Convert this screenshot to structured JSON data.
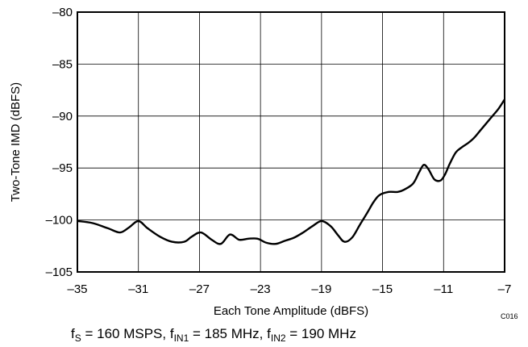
{
  "chart_data": {
    "type": "line",
    "xlabel": "Each Tone Amplitude (dBFS)",
    "ylabel": "Two-Tone IMD (dBFS)",
    "xlim": [
      -35,
      -7
    ],
    "ylim": [
      -105,
      -80
    ],
    "x_ticks": [
      -35,
      -31,
      -27,
      -23,
      -19,
      -15,
      -11,
      -7
    ],
    "y_ticks": [
      -80,
      -85,
      -90,
      -95,
      -100,
      -105
    ],
    "x_tick_labels": [
      "–35",
      "–31",
      "–27",
      "–23",
      "–19",
      "–15",
      "–11",
      "–7"
    ],
    "y_tick_labels": [
      "–80",
      "–85",
      "–90",
      "–95",
      "–100",
      "–105"
    ],
    "grid": true,
    "line_color": "#000000",
    "series": [
      {
        "x": [
          -35,
          -34,
          -33,
          -32.2,
          -31.6,
          -31,
          -30.4,
          -29.6,
          -28.8,
          -28,
          -27.5,
          -26.9,
          -26.2,
          -25.6,
          -25,
          -24.4,
          -23.8,
          -23.2,
          -22.6,
          -22,
          -21.4,
          -20.8,
          -20.2,
          -19.6,
          -19,
          -18.4,
          -17.9,
          -17.5,
          -17,
          -16.5,
          -16,
          -15.6,
          -15.2,
          -14.6,
          -14,
          -13.6,
          -13,
          -12.6,
          -12.3,
          -12,
          -11.6,
          -11.2,
          -10.9,
          -10.6,
          -10.2,
          -9.8,
          -9.4,
          -9,
          -8.6,
          -8.2,
          -7.8,
          -7.4,
          -7
        ],
        "y": [
          -100.1,
          -100.3,
          -100.8,
          -101.2,
          -100.7,
          -100.1,
          -100.8,
          -101.6,
          -102.1,
          -102.1,
          -101.6,
          -101.2,
          -101.9,
          -102.3,
          -101.4,
          -101.9,
          -101.8,
          -101.8,
          -102.2,
          -102.3,
          -102.0,
          -101.7,
          -101.2,
          -100.6,
          -100.1,
          -100.6,
          -101.5,
          -102.1,
          -101.7,
          -100.5,
          -99.3,
          -98.3,
          -97.6,
          -97.3,
          -97.3,
          -97.1,
          -96.5,
          -95.4,
          -94.7,
          -95.1,
          -96.1,
          -96.2,
          -95.6,
          -94.6,
          -93.5,
          -93.0,
          -92.6,
          -92.1,
          -91.4,
          -90.7,
          -90.0,
          -89.3,
          -88.4
        ]
      }
    ]
  },
  "code_label": "C016",
  "caption": {
    "f_s": "f",
    "f_s_sub": "S",
    "f_s_value": " = 160 MSPS, ",
    "f_in1": "f",
    "f_in1_sub": "IN1",
    "f_in1_value": " = 185 MHz, ",
    "f_in2": "f",
    "f_in2_sub": "IN2",
    "f_in2_value": " = 190 MHz"
  }
}
